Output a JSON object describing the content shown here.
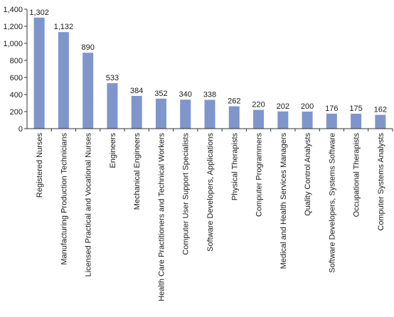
{
  "chart_data": {
    "type": "bar",
    "title": "",
    "xlabel": "",
    "ylabel": "",
    "ylim": [
      0,
      1400
    ],
    "yticks": [
      0,
      200,
      400,
      600,
      800,
      1000,
      1200,
      1400
    ],
    "ytick_labels": [
      "0",
      "200",
      "400",
      "600",
      "800",
      "1,000",
      "1,200",
      "1,400"
    ],
    "grid": false,
    "legend": "none",
    "bar_color": "#7f96cc",
    "categories": [
      "Registered Nurses",
      "Manufacturing Production Technicians",
      "Licensed Practical and Vocational Nurses",
      "Engineers",
      "Mechanical Engineers",
      "Health Care Practitioners and Technical Workers",
      "Computer User Support Specialists",
      "Software Developers, Applications",
      "Physical Therapists",
      "Computer Programmers",
      "Medical and Health Services Managers",
      "Quality Control Analysts",
      "Software Developers, Systems Software",
      "Occupational Therapists",
      "Computer Systems Analysts"
    ],
    "values": [
      1302,
      1132,
      890,
      533,
      384,
      352,
      340,
      338,
      262,
      220,
      202,
      200,
      176,
      175,
      162
    ],
    "data_labels": [
      "1,302",
      "1,132",
      "890",
      "533",
      "384",
      "352",
      "340",
      "338",
      "262",
      "220",
      "202",
      "200",
      "176",
      "175",
      "162"
    ]
  }
}
